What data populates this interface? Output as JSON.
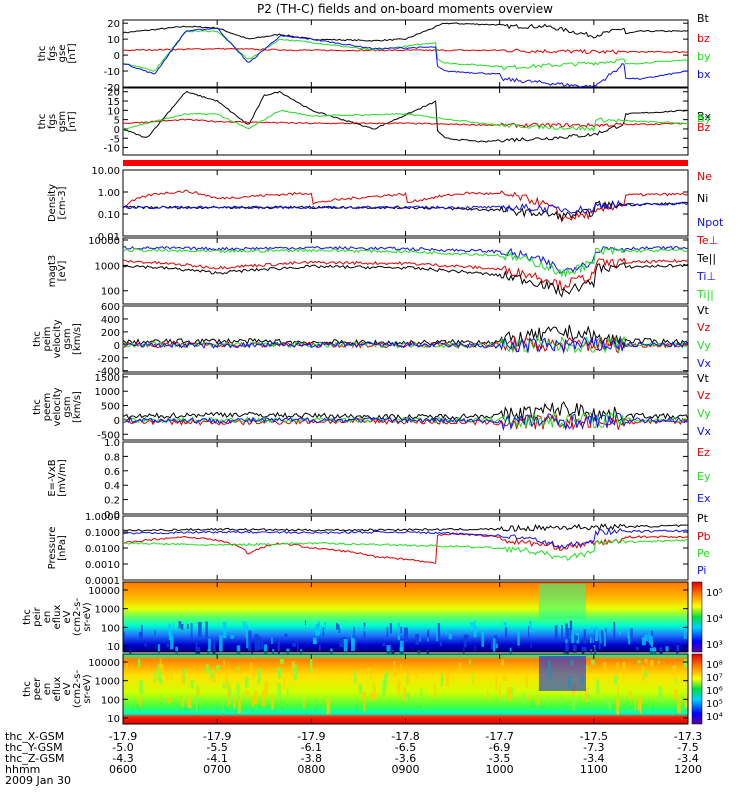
{
  "title": "P2 (TH-C) fields and on-board moments overview",
  "colors": {
    "black": "#000000",
    "red": "#e00000",
    "green": "#22dd22",
    "blue": "#1010ee"
  },
  "chart_data": [
    {
      "type": "line",
      "ylabel": [
        "thc",
        "fgs",
        "gse",
        "[nT]"
      ],
      "yticks": [
        "20",
        "10",
        "0",
        "-10",
        "-20"
      ],
      "ylim": [
        -20,
        22
      ],
      "series": [
        {
          "name": "Bt",
          "color": "#000000",
          "x": [
            600,
            640,
            700,
            720,
            740,
            800,
            840,
            900,
            925,
            960,
            1000,
            1030,
            1060,
            1080,
            1100,
            1130,
            1200
          ],
          "values": [
            14,
            18,
            17,
            10,
            13,
            10,
            9,
            10,
            20,
            19,
            18,
            18,
            12,
            17,
            10,
            15,
            15
          ]
        },
        {
          "name": "bz",
          "color": "#e00000",
          "x": [
            600,
            700,
            800,
            900,
            1000,
            1060,
            1100,
            1200
          ],
          "values": [
            3,
            4,
            3,
            3,
            3,
            2,
            2,
            2
          ]
        },
        {
          "name": "by",
          "color": "#22dd22",
          "x": [
            600,
            620,
            640,
            700,
            720,
            740,
            800,
            840,
            880,
            900,
            925,
            960,
            1000,
            1060,
            1080,
            1100,
            1200
          ],
          "values": [
            -5,
            -10,
            15,
            15,
            -3,
            10,
            8,
            3,
            8,
            10,
            -5,
            -7,
            -8,
            -5,
            -3,
            -7,
            -3
          ]
        },
        {
          "name": "bx",
          "color": "#1010ee",
          "x": [
            600,
            620,
            640,
            700,
            720,
            740,
            800,
            840,
            880,
            900,
            925,
            960,
            1000,
            1060,
            1080,
            1100,
            1130,
            1200
          ],
          "values": [
            -5,
            -12,
            15,
            17,
            -5,
            12,
            10,
            4,
            5,
            5,
            -10,
            -12,
            -15,
            -20,
            -5,
            -13,
            -15,
            -10
          ]
        }
      ]
    },
    {
      "type": "line",
      "ylabel": [
        "thc",
        "fgs",
        "gsm",
        "[nT]"
      ],
      "yticks": [
        "20",
        "15",
        "10",
        "5",
        "0",
        "-5",
        "-10"
      ],
      "ylim": [
        -14,
        22
      ],
      "series": [
        {
          "name": "Bx",
          "color": "#000000",
          "x": [
            600,
            615,
            640,
            700,
            720,
            730,
            740,
            800,
            840,
            880,
            900,
            925,
            950,
            1000,
            1030,
            1060,
            1080,
            1100,
            1200
          ],
          "values": [
            0,
            -5,
            20,
            15,
            2,
            18,
            20,
            10,
            0,
            15,
            18,
            -5,
            -7,
            -6,
            -5,
            -3,
            3,
            7,
            10
          ]
        },
        {
          "name": "Bz",
          "color": "#e00000",
          "x": [
            600,
            640,
            700,
            800,
            900,
            1000,
            1060,
            1100,
            1200
          ],
          "values": [
            3,
            5,
            4,
            3,
            3,
            2,
            2,
            2,
            3
          ]
        },
        {
          "name": "By",
          "color": "#22dd22",
          "x": [
            600,
            640,
            700,
            720,
            740,
            800,
            900,
            1000,
            1060,
            1100,
            1200
          ],
          "values": [
            0,
            8,
            8,
            0,
            10,
            7,
            8,
            2,
            0,
            5,
            3
          ]
        }
      ]
    },
    {
      "type": "line",
      "ylabel": [
        "Density",
        "[cm-3]"
      ],
      "yticks": [
        "10.00",
        "1.00",
        "0.10",
        "0.01"
      ],
      "ylim": [
        0.01,
        10
      ],
      "scale": "log",
      "series": [
        {
          "name": "Ne",
          "color": "#e00000",
          "x": [
            600,
            620,
            640,
            700,
            760,
            800,
            860,
            900,
            940,
            1000,
            1040,
            1060,
            1080,
            1100,
            1200
          ],
          "values": [
            0.2,
            0.8,
            1.1,
            0.5,
            0.9,
            0.3,
            0.8,
            0.3,
            0.9,
            0.8,
            0.06,
            0.1,
            0.3,
            0.7,
            0.8
          ]
        },
        {
          "name": "Ni",
          "color": "#000000",
          "x": [
            600,
            700,
            800,
            900,
            1000,
            1040,
            1060,
            1100,
            1200
          ],
          "values": [
            0.2,
            0.2,
            0.2,
            0.2,
            0.15,
            0.08,
            0.12,
            0.25,
            0.3
          ]
        },
        {
          "name": "Npot",
          "color": "#1010ee",
          "x": [
            600,
            700,
            800,
            900,
            1000,
            1060,
            1100,
            1200
          ],
          "values": [
            0.2,
            0.2,
            0.2,
            0.2,
            0.2,
            0.15,
            0.25,
            0.3
          ]
        }
      ]
    },
    {
      "type": "line",
      "ylabel": [
        "magt3",
        "[eV]"
      ],
      "yticks": [
        "10000",
        "1000",
        "100"
      ],
      "ylim": [
        30,
        12000
      ],
      "scale": "log",
      "series": [
        {
          "name": "Te⊥",
          "color": "#e00000",
          "x": [
            600,
            700,
            800,
            900,
            1000,
            1040,
            1060,
            1100,
            1200
          ],
          "values": [
            1500,
            800,
            1300,
            1200,
            700,
            150,
            400,
            1200,
            1500
          ]
        },
        {
          "name": "Te||",
          "color": "#000000",
          "x": [
            600,
            700,
            800,
            900,
            1000,
            1040,
            1060,
            1100,
            1200
          ],
          "values": [
            1000,
            500,
            900,
            800,
            400,
            80,
            200,
            800,
            1000
          ]
        },
        {
          "name": "Ti⊥",
          "color": "#1010ee",
          "x": [
            600,
            700,
            800,
            900,
            1000,
            1040,
            1060,
            1100,
            1200
          ],
          "values": [
            5000,
            4500,
            5000,
            4500,
            3500,
            500,
            1500,
            4500,
            5000
          ]
        },
        {
          "name": "Ti||",
          "color": "#22dd22",
          "x": [
            600,
            700,
            800,
            900,
            1000,
            1040,
            1060,
            1100,
            1200
          ],
          "values": [
            4000,
            3500,
            4000,
            3500,
            2500,
            400,
            1200,
            3500,
            4000
          ]
        }
      ]
    },
    {
      "type": "line",
      "ylabel": [
        "thc",
        "peim",
        "velocity",
        "gsm",
        "[km/s]"
      ],
      "yticks": [
        "600",
        "400",
        "200",
        "0",
        "-200",
        "-400"
      ],
      "ylim": [
        -420,
        600
      ],
      "series": [
        {
          "name": "Vt",
          "color": "#000000",
          "x": [
            600,
            700,
            800,
            900,
            1000,
            1040,
            1060,
            1100,
            1200
          ],
          "values": [
            40,
            60,
            40,
            30,
            50,
            200,
            150,
            80,
            40
          ]
        },
        {
          "name": "Vz",
          "color": "#e00000",
          "x": [
            600,
            700,
            800,
            900,
            1000,
            1100,
            1200
          ],
          "values": [
            0,
            0,
            0,
            0,
            0,
            0,
            0
          ]
        },
        {
          "name": "Vy",
          "color": "#22dd22",
          "x": [
            600,
            700,
            800,
            900,
            1000,
            1100,
            1200
          ],
          "values": [
            0,
            10,
            0,
            0,
            -10,
            0,
            0
          ]
        },
        {
          "name": "Vx",
          "color": "#1010ee",
          "x": [
            600,
            700,
            800,
            900,
            1000,
            1100,
            1200
          ],
          "values": [
            0,
            -10,
            0,
            0,
            -20,
            0,
            0
          ]
        }
      ]
    },
    {
      "type": "line",
      "ylabel": [
        "thc",
        "peem",
        "velocity",
        "gsm",
        "[km/s]"
      ],
      "yticks": [
        "1500",
        "1000",
        "500",
        "0",
        "-500"
      ],
      "ylim": [
        -700,
        1600
      ],
      "series": [
        {
          "name": "Vt",
          "color": "#000000",
          "x": [
            600,
            700,
            800,
            900,
            1000,
            1040,
            1060,
            1100,
            1200
          ],
          "values": [
            100,
            200,
            150,
            100,
            150,
            400,
            300,
            200,
            100
          ]
        },
        {
          "name": "Vz",
          "color": "#e00000",
          "x": [
            600,
            700,
            800,
            900,
            1000,
            1100,
            1200
          ],
          "values": [
            -50,
            -100,
            -50,
            -50,
            -100,
            -80,
            -50
          ]
        },
        {
          "name": "Vy",
          "color": "#22dd22",
          "x": [
            600,
            700,
            800,
            900,
            1000,
            1100,
            1200
          ],
          "values": [
            0,
            0,
            0,
            0,
            0,
            0,
            0
          ]
        },
        {
          "name": "Vx",
          "color": "#1010ee",
          "x": [
            600,
            700,
            800,
            900,
            1000,
            1100,
            1200
          ],
          "values": [
            0,
            -20,
            0,
            0,
            -50,
            -30,
            0
          ]
        }
      ]
    },
    {
      "type": "line",
      "ylabel": [
        "E=-VxB",
        "[mV/m]"
      ],
      "yticks": [
        "1.0",
        "0.8",
        "0.6",
        "0.4",
        "0.2",
        "0.0"
      ],
      "ylim": [
        0,
        1
      ],
      "series": [
        {
          "name": "Ez",
          "color": "#e00000",
          "x": [],
          "values": []
        },
        {
          "name": "Ey",
          "color": "#22dd22",
          "x": [],
          "values": []
        },
        {
          "name": "Ex",
          "color": "#1010ee",
          "x": [],
          "values": []
        }
      ]
    },
    {
      "type": "line",
      "ylabel": [
        "Pressure",
        "[nPa]"
      ],
      "yticks": [
        "1.0000",
        "0.1000",
        "0.0100",
        "0.0010",
        "0.0001"
      ],
      "ylim": [
        0.0001,
        1
      ],
      "scale": "log",
      "series": [
        {
          "name": "Pt",
          "color": "#000000",
          "x": [
            600,
            700,
            800,
            900,
            1000,
            1040,
            1060,
            1100,
            1200
          ],
          "values": [
            0.12,
            0.15,
            0.13,
            0.14,
            0.15,
            0.2,
            0.2,
            0.2,
            0.25
          ]
        },
        {
          "name": "Pb",
          "color": "#e00000",
          "x": [
            600,
            640,
            700,
            720,
            740,
            800,
            840,
            880,
            900,
            930,
            960,
            1000,
            1040,
            1060,
            1080,
            1100,
            1200
          ],
          "values": [
            0.02,
            0.05,
            0.03,
            0.004,
            0.02,
            0.01,
            0.003,
            0.001,
            0.03,
            0.08,
            0.05,
            0.03,
            0.01,
            0.02,
            0.03,
            0.05,
            0.05
          ]
        },
        {
          "name": "Pe",
          "color": "#22dd22",
          "x": [
            600,
            700,
            800,
            900,
            1000,
            1040,
            1060,
            1100,
            1200
          ],
          "values": [
            0.02,
            0.015,
            0.02,
            0.015,
            0.01,
            0.002,
            0.005,
            0.02,
            0.03
          ]
        },
        {
          "name": "Pi",
          "color": "#1010ee",
          "x": [
            600,
            700,
            800,
            900,
            1000,
            1040,
            1060,
            1100,
            1200
          ],
          "values": [
            0.08,
            0.1,
            0.09,
            0.1,
            0.06,
            0.01,
            0.03,
            0.1,
            0.12
          ]
        }
      ]
    },
    {
      "type": "heatmap",
      "ylabel": [
        "thc",
        "peir",
        "en",
        "eflux",
        "eV",
        "(cm2-s-",
        "sr-eV)"
      ],
      "yticks": [
        "10000",
        "1000",
        "100",
        "10"
      ],
      "cbar_ticks": [
        "10⁵",
        "10⁴",
        "10³"
      ],
      "colormap": "rainbow"
    },
    {
      "type": "heatmap",
      "ylabel": [
        "thc",
        "peer",
        "en",
        "eflux",
        "eV",
        "(cm2-s-",
        "sr-eV)"
      ],
      "yticks": [
        "10000",
        "1000",
        "100",
        "10"
      ],
      "cbar_ticks": [
        "10⁸",
        "10⁷",
        "10⁶",
        "10⁵",
        "10⁴"
      ],
      "colormap": "rainbow"
    }
  ],
  "xaxis": {
    "rows": [
      {
        "label": "thc_X-GSM",
        "values": [
          "-17.9",
          "-17.9",
          "-17.9",
          "-17.8",
          "-17.7",
          "-17.5",
          "-17.3"
        ]
      },
      {
        "label": "thc_Y-GSM",
        "values": [
          "-5.0",
          "-5.5",
          "-6.1",
          "-6.5",
          "-6.9",
          "-7.3",
          "-7.5"
        ]
      },
      {
        "label": "thc_Z-GSM",
        "values": [
          "-4.3",
          "-4.1",
          "-3.8",
          "-3.6",
          "-3.5",
          "-3.4",
          "-3.4"
        ]
      },
      {
        "label": "hhmm",
        "values": [
          "0600",
          "0700",
          "0800",
          "0900",
          "1000",
          "1100",
          "1200"
        ]
      }
    ],
    "date": "2009 Jan 30"
  }
}
